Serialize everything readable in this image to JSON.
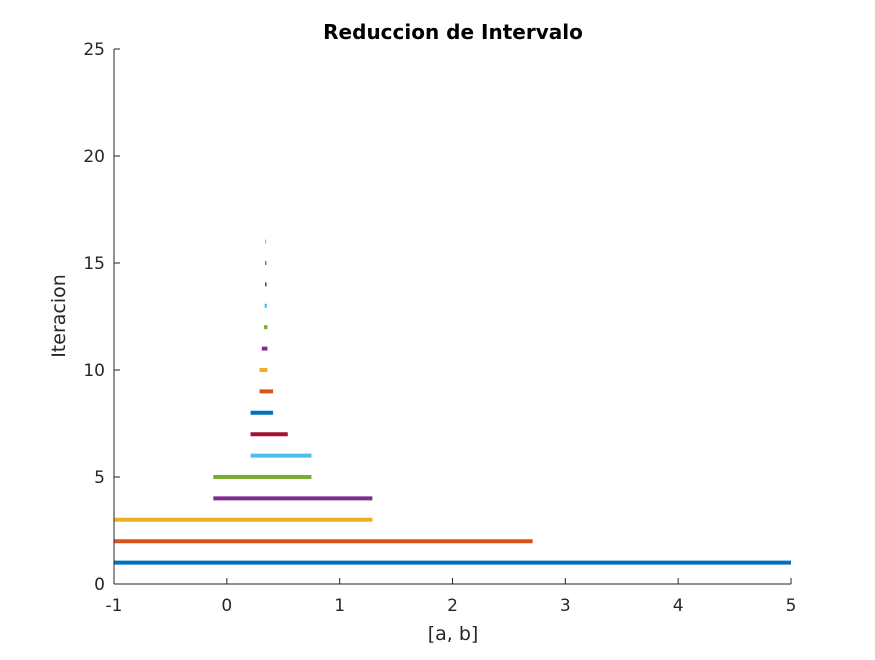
{
  "chart_data": {
    "type": "interval",
    "title": "Reduccion de Intervalo",
    "xlabel": "[a, b]",
    "ylabel": "Iteracion",
    "xlim": [
      -1,
      5
    ],
    "ylim": [
      0,
      25
    ],
    "xticks": [
      -1,
      0,
      1,
      2,
      3,
      4,
      5
    ],
    "yticks": [
      0,
      5,
      10,
      15,
      20,
      25
    ],
    "xtick_labels": [
      "-1",
      "0",
      "1",
      "2",
      "3",
      "4",
      "5"
    ],
    "ytick_labels": [
      "0",
      "5",
      "10",
      "15",
      "20",
      "25"
    ],
    "grid": false,
    "intervals": [
      {
        "iteration": 1,
        "a": -1.0,
        "b": 5.0,
        "color": "#0072BD"
      },
      {
        "iteration": 2,
        "a": -1.0,
        "b": 2.71,
        "color": "#D95319"
      },
      {
        "iteration": 3,
        "a": -1.0,
        "b": 1.29,
        "color": "#EDB120"
      },
      {
        "iteration": 4,
        "a": -0.12,
        "b": 1.29,
        "color": "#7E2F8E"
      },
      {
        "iteration": 5,
        "a": -0.12,
        "b": 0.75,
        "color": "#77AC30"
      },
      {
        "iteration": 6,
        "a": 0.21,
        "b": 0.75,
        "color": "#4DBEEE"
      },
      {
        "iteration": 7,
        "a": 0.21,
        "b": 0.54,
        "color": "#A2142F"
      },
      {
        "iteration": 8,
        "a": 0.21,
        "b": 0.41,
        "color": "#0072BD"
      },
      {
        "iteration": 9,
        "a": 0.29,
        "b": 0.41,
        "color": "#D95319"
      },
      {
        "iteration": 10,
        "a": 0.29,
        "b": 0.36,
        "color": "#EDB120"
      },
      {
        "iteration": 11,
        "a": 0.31,
        "b": 0.36,
        "color": "#7E2F8E"
      },
      {
        "iteration": 12,
        "a": 0.33,
        "b": 0.36,
        "color": "#77AC30"
      },
      {
        "iteration": 13,
        "a": 0.335,
        "b": 0.355,
        "color": "#4DBEEE"
      },
      {
        "iteration": 14,
        "a": 0.338,
        "b": 0.352,
        "color": "#7E2F8E"
      },
      {
        "iteration": 15,
        "a": 0.34,
        "b": 0.35,
        "color": "#0072BD"
      },
      {
        "iteration": 16,
        "a": 0.342,
        "b": 0.348,
        "color": "#D95319"
      }
    ]
  }
}
